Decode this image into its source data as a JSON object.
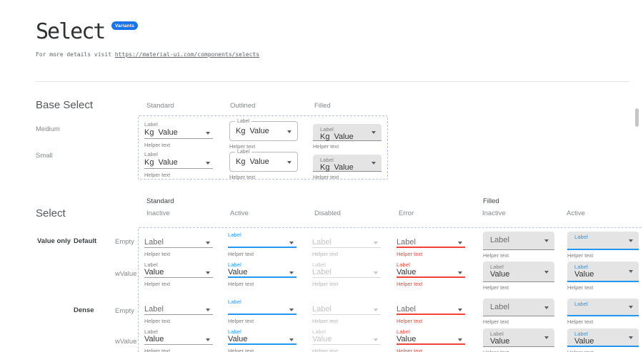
{
  "header": {
    "title": "Select",
    "badge": "Variants",
    "intro_text": "For more details visit ",
    "link": "https://material-ui.com/components/selects"
  },
  "base_select": {
    "heading": "Base Select",
    "column_headers": [
      "Standard",
      "Outlined",
      "Filled"
    ],
    "row_labels": [
      "Medium",
      "Small"
    ],
    "cell": {
      "label": "Label",
      "adornment": "Kg",
      "value": "Value",
      "helper": "Helper text"
    }
  },
  "select": {
    "heading": "Select",
    "row_group_label": "Value only",
    "columns": [
      {
        "group": "Standard",
        "state": "Inactive",
        "type": "standard"
      },
      {
        "group": "Standard",
        "state": "Active",
        "type": "standard"
      },
      {
        "group": "Standard",
        "state": "Disabled",
        "type": "standard"
      },
      {
        "group": "Standard",
        "state": "Error",
        "type": "standard"
      },
      {
        "group": "Filled",
        "state": "Inactive",
        "type": "filled"
      },
      {
        "group": "Filled",
        "state": "Active",
        "type": "filled"
      }
    ],
    "row_groups": [
      {
        "size": "Default",
        "rows": [
          {
            "label": "Empty",
            "cells": [
              {
                "label": "",
                "value": "Label",
                "helper": "Helper text"
              },
              {
                "label": "Label",
                "value": "",
                "helper": "Helper text"
              },
              {
                "label": "",
                "value": "Label",
                "helper": "Helper text"
              },
              {
                "label": "",
                "value": "Label",
                "helper": "Helper text"
              },
              {
                "label": "",
                "value": "Label",
                "helper": "Helper text"
              },
              {
                "label": "Label",
                "value": "",
                "helper": "Helper text"
              }
            ]
          },
          {
            "label": "wValue",
            "cells": [
              {
                "label": "Label",
                "value": "Value",
                "helper": "Helper text"
              },
              {
                "label": "Label",
                "value": "Value",
                "helper": "Helper text"
              },
              {
                "label": "Label",
                "value": "Label",
                "helper": "Helper text"
              },
              {
                "label": "Label",
                "value": "Value",
                "helper": "Helper text"
              },
              {
                "label": "Label",
                "value": "Value",
                "helper": "Helper text"
              },
              {
                "label": "Label",
                "value": "Value",
                "helper": "Helper text"
              }
            ]
          }
        ]
      },
      {
        "size": "Dense",
        "rows": [
          {
            "label": "Empty",
            "cells": [
              {
                "label": "",
                "value": "Label",
                "helper": "Helper text"
              },
              {
                "label": "Label",
                "value": "",
                "helper": "Helper text"
              },
              {
                "label": "",
                "value": "Label",
                "helper": "Helper text"
              },
              {
                "label": "",
                "value": "Label",
                "helper": "Helper text"
              },
              {
                "label": "",
                "value": "Label",
                "helper": "Helper text"
              },
              {
                "label": "Label",
                "value": "",
                "helper": "Helper text"
              }
            ]
          },
          {
            "label": "wValue",
            "cells": [
              {
                "label": "Label",
                "value": "Value",
                "helper": "Helper text"
              },
              {
                "label": "Label",
                "value": "Value",
                "helper": "Helper text"
              },
              {
                "label": "Label",
                "value": "Value",
                "helper": "Helper text"
              },
              {
                "label": "Label",
                "value": "Value",
                "helper": "Helper text"
              },
              {
                "label": "Label",
                "value": "Value",
                "helper": "Helper text"
              },
              {
                "label": "Label",
                "value": "Value",
                "helper": "Helper text"
              }
            ]
          }
        ]
      }
    ]
  },
  "colors": {
    "primary": "#2196f3",
    "error": "#f44336",
    "badge": "#1a73e8",
    "filled_bg": "#e4e4e4"
  }
}
